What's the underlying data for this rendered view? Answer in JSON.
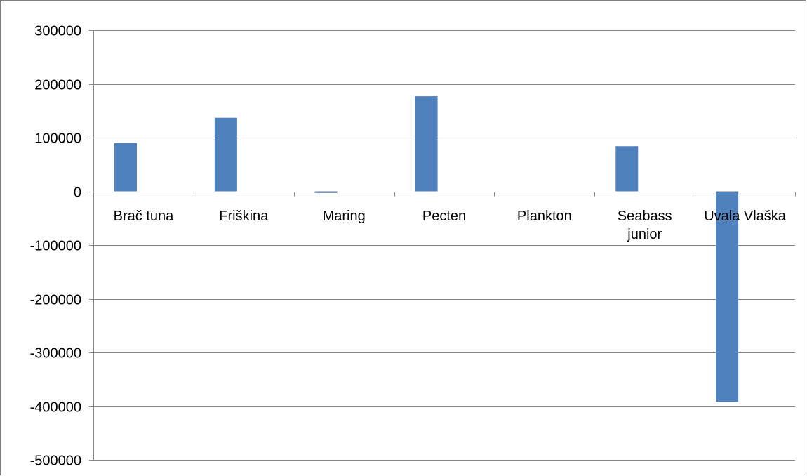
{
  "chart_data": {
    "type": "bar",
    "categories": [
      "Brač tuna",
      "Friškina",
      "Maring",
      "Pecten",
      "Plankton",
      "Seabass junior",
      "Uvala Vlaška"
    ],
    "category_lines": [
      [
        "Brač tuna"
      ],
      [
        "Friškina"
      ],
      [
        "Maring"
      ],
      [
        "Pecten"
      ],
      [
        "Plankton"
      ],
      [
        "Seabass",
        "junior"
      ],
      [
        "Uvala Vlaška"
      ]
    ],
    "values": [
      90000,
      137000,
      -3000,
      177000,
      0,
      84000,
      -392000
    ],
    "yticks": [
      "300000",
      "200000",
      "100000",
      "0",
      "-100000",
      "-200000",
      "-300000",
      "-400000",
      "-500000"
    ],
    "ylim": [
      -500000,
      300000
    ],
    "title": "",
    "xlabel": "",
    "ylabel": "",
    "grid": true,
    "legend": "none",
    "colors": {
      "bar": "#4f81bd",
      "grid": "#868686",
      "axis": "#868686"
    }
  }
}
